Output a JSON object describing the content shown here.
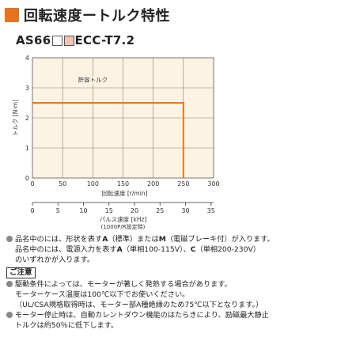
{
  "title": "回転速度ートルク特性",
  "model": {
    "prefix": "AS66",
    "suffix": "ECC-T7.2"
  },
  "chart_data": {
    "type": "line",
    "xlabel": "回転速度 [r/min]",
    "ylabel": "トルク [N·m]",
    "xlim": [
      0,
      300
    ],
    "ylim": [
      0,
      4
    ],
    "x_ticks": [
      0,
      50,
      100,
      150,
      200,
      250,
      300
    ],
    "y_ticks": [
      0,
      1,
      2,
      3,
      4
    ],
    "grid": true,
    "series": [
      {
        "name": "許容トルク",
        "color": "#e8731e",
        "x": [
          0,
          250,
          250
        ],
        "y": [
          2.5,
          2.5,
          0
        ]
      }
    ],
    "secondary_axis": {
      "label": "パルス速度 [kHz]",
      "sublabel": "(1000P/R設定時)",
      "ticks": [
        0,
        5,
        10,
        15,
        20,
        25,
        30,
        35
      ],
      "lim": [
        0,
        35.5
      ]
    }
  },
  "notes": {
    "n1_a": "品名中の",
    "n1_b": "には、形状を表す",
    "n1_c": "A",
    "n1_d": "（標準）または",
    "n1_e": "M",
    "n1_f": "（電磁ブレーキ付）が入ります。",
    "n2_a": "品名中の",
    "n2_b": "には、電源入力を表す",
    "n2_c": "A",
    "n2_d": "（単相100-115V）、",
    "n2_e": "C",
    "n2_f": "（単相200-230V）",
    "n3": "のいずれかが入ります。",
    "caution": "ご注意",
    "c1": "駆動条件によっては、モーターが著しく発熱する場合があります。",
    "c2": "モーターケース温度は100℃以下でお使いください。",
    "c3": "（UL/CSA規格取得時は、モーター部A種絶縁のため75℃以下となります。）",
    "c4": "モーター停止時は、自動カレントダウン機能のはたらきにより、励磁最大静止",
    "c5": "トルクは約50％に低下します。"
  }
}
